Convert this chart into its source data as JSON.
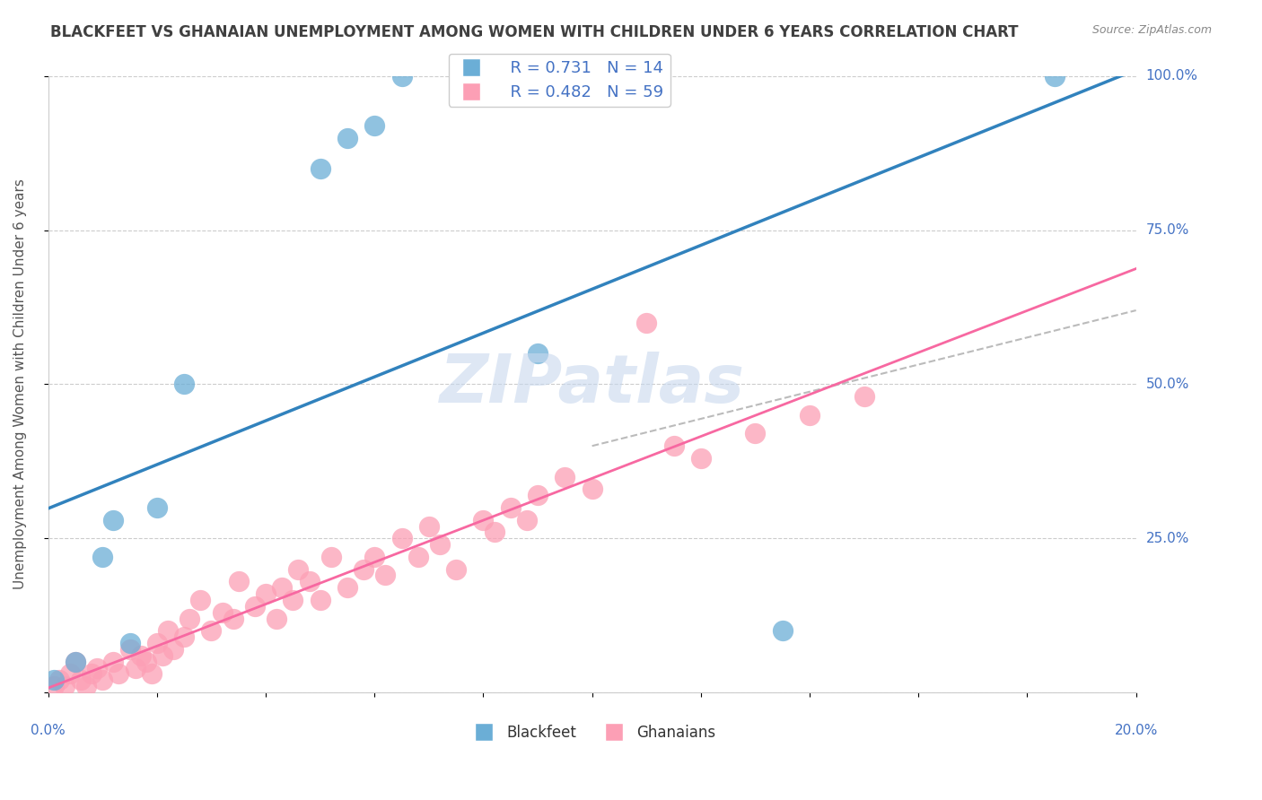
{
  "title": "BLACKFEET VS GHANAIAN UNEMPLOYMENT AMONG WOMEN WITH CHILDREN UNDER 6 YEARS CORRELATION CHART",
  "source": "Source: ZipAtlas.com",
  "ylabel": "Unemployment Among Women with Children Under 6 years",
  "xlim": [
    0,
    0.2
  ],
  "ylim": [
    0,
    1.0
  ],
  "yticks": [
    0,
    0.25,
    0.5,
    0.75,
    1.0
  ],
  "ytick_labels": [
    "",
    "25.0%",
    "50.0%",
    "75.0%",
    "100.0%"
  ],
  "legend_r1": "R = 0.731",
  "legend_n1": "N = 14",
  "legend_r2": "R = 0.482",
  "legend_n2": "N = 59",
  "legend_label1": "Blackfeet",
  "legend_label2": "Ghanaians",
  "blue_color": "#6baed6",
  "pink_color": "#fc9fb5",
  "blue_line_color": "#3182bd",
  "pink_line_color": "#f768a1",
  "text_blue": "#4472C4",
  "watermark": "ZIPatlas",
  "watermark_color": "#c8d8ee",
  "title_color": "#404040",
  "blackfeet_x": [
    0.001,
    0.005,
    0.01,
    0.012,
    0.015,
    0.02,
    0.025,
    0.05,
    0.055,
    0.06,
    0.065,
    0.09,
    0.135,
    0.185
  ],
  "blackfeet_y": [
    0.02,
    0.05,
    0.22,
    0.28,
    0.08,
    0.3,
    0.5,
    0.85,
    0.9,
    0.92,
    1.0,
    0.55,
    0.1,
    1.0
  ],
  "ghanaian_x": [
    0.001,
    0.002,
    0.003,
    0.004,
    0.005,
    0.006,
    0.007,
    0.008,
    0.009,
    0.01,
    0.012,
    0.013,
    0.015,
    0.016,
    0.017,
    0.018,
    0.019,
    0.02,
    0.021,
    0.022,
    0.023,
    0.025,
    0.026,
    0.028,
    0.03,
    0.032,
    0.034,
    0.035,
    0.038,
    0.04,
    0.042,
    0.043,
    0.045,
    0.046,
    0.048,
    0.05,
    0.052,
    0.055,
    0.058,
    0.06,
    0.062,
    0.065,
    0.068,
    0.07,
    0.072,
    0.075,
    0.08,
    0.082,
    0.085,
    0.088,
    0.09,
    0.095,
    0.1,
    0.11,
    0.115,
    0.12,
    0.13,
    0.14,
    0.15
  ],
  "ghanaian_y": [
    0.01,
    0.02,
    0.01,
    0.03,
    0.05,
    0.02,
    0.01,
    0.03,
    0.04,
    0.02,
    0.05,
    0.03,
    0.07,
    0.04,
    0.06,
    0.05,
    0.03,
    0.08,
    0.06,
    0.1,
    0.07,
    0.09,
    0.12,
    0.15,
    0.1,
    0.13,
    0.12,
    0.18,
    0.14,
    0.16,
    0.12,
    0.17,
    0.15,
    0.2,
    0.18,
    0.15,
    0.22,
    0.17,
    0.2,
    0.22,
    0.19,
    0.25,
    0.22,
    0.27,
    0.24,
    0.2,
    0.28,
    0.26,
    0.3,
    0.28,
    0.32,
    0.35,
    0.33,
    0.6,
    0.4,
    0.38,
    0.42,
    0.45,
    0.48
  ]
}
